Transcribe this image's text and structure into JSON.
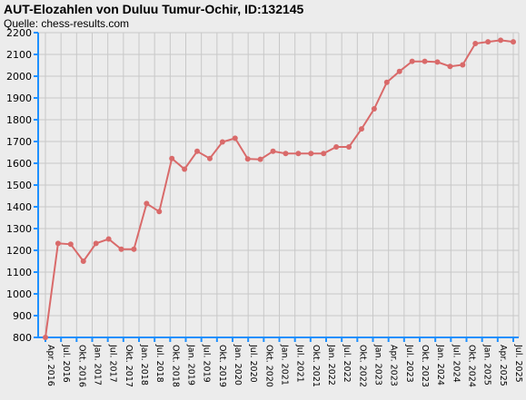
{
  "chart_data": {
    "type": "line",
    "title": "AUT-Elozahlen von Duluu Tumur-Ochir, ID:132145",
    "subtitle": "Quelle: chess-results.com",
    "xlabel": "",
    "ylabel": "",
    "ylim": [
      800,
      2200
    ],
    "yticks": [
      800,
      900,
      1000,
      1100,
      1200,
      1300,
      1400,
      1500,
      1600,
      1700,
      1800,
      1900,
      2000,
      2100,
      2200
    ],
    "grid": true,
    "legend": "none",
    "x_tick_labels": [
      "Apr. 2016",
      "Jul. 2016",
      "Okt. 2016",
      "Jan. 2017",
      "Jul. 2017",
      "Okt. 2017",
      "Jan. 2018",
      "Jul. 2018",
      "Okt. 2018",
      "Jan. 2019",
      "Jul. 2019",
      "Okt. 2019",
      "Jan. 2020",
      "Jul. 2020",
      "Okt. 2020",
      "Jan. 2021",
      "Jul. 2021",
      "Okt. 2021",
      "Jan. 2022",
      "Jul. 2022",
      "Okt. 2022",
      "Jan. 2023",
      "Apr. 2023",
      "Jul. 2023",
      "Okt. 2023",
      "Jan. 2024",
      "Jul. 2024",
      "Okt. 2024",
      "Jan. 2025",
      "Apr. 2025",
      "Jul. 2025"
    ],
    "colors": {
      "line": "#d96a6a",
      "marker": "#d96a6a",
      "axis": "#1e90ff",
      "grid": "#c8c8c8",
      "background": "#ececec"
    },
    "values": [
      800,
      1232,
      1228,
      1150,
      1232,
      1252,
      1205,
      1205,
      1415,
      1378,
      1622,
      1573,
      1655,
      1622,
      1698,
      1715,
      1620,
      1618,
      1655,
      1645,
      1645,
      1645,
      1645,
      1675,
      1675,
      1758,
      1850,
      1972,
      2022,
      2068,
      2068,
      2065,
      2045,
      2052,
      2150,
      2158,
      2165,
      2158
    ]
  }
}
